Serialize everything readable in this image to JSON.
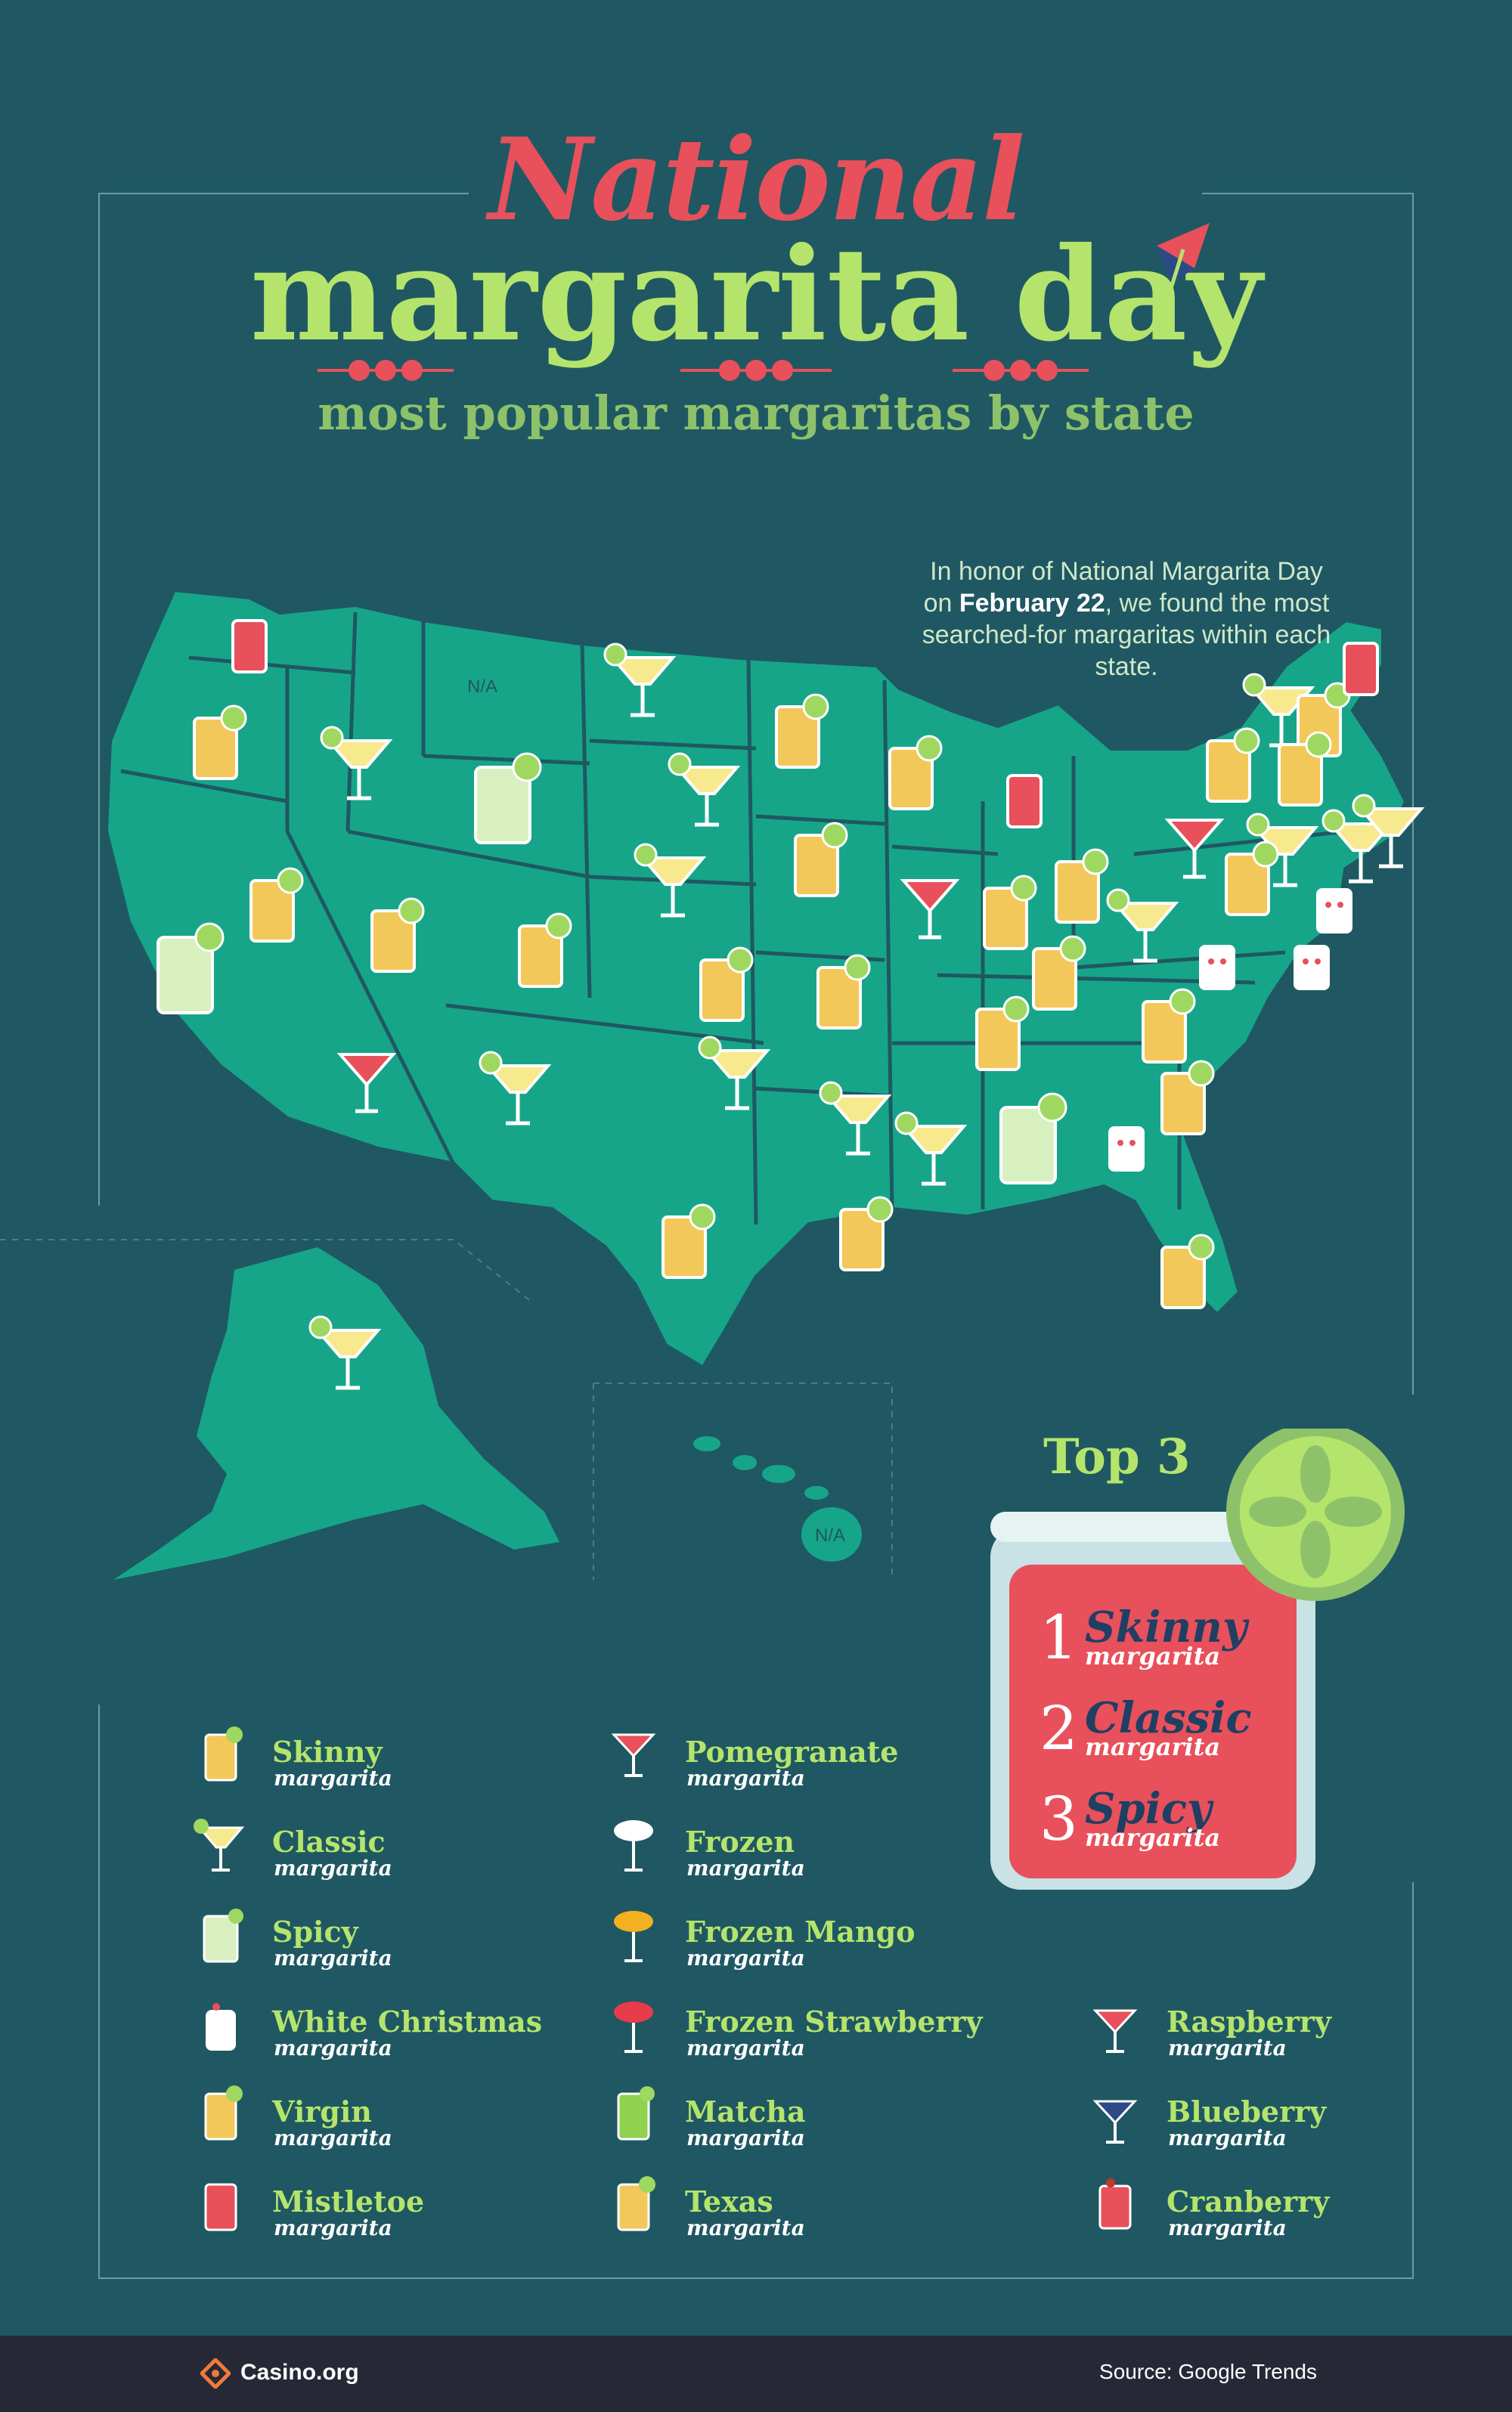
{
  "title": {
    "line1": "National",
    "line2": "margarita day",
    "subtitle": "most popular margaritas by state"
  },
  "intro": {
    "before": "In honor of National Margarita Day on ",
    "date": "February 22",
    "after": ", we found the most searched-for margaritas within each state."
  },
  "map": {
    "na_label": "N/A"
  },
  "legend": {
    "col1": [
      {
        "name": "Skinny",
        "sub": "margarita"
      },
      {
        "name": "Classic",
        "sub": "margarita"
      },
      {
        "name": "Spicy",
        "sub": "margarita"
      },
      {
        "name": "White Christmas",
        "sub": "margarita"
      },
      {
        "name": "Virgin",
        "sub": "margarita"
      },
      {
        "name": "Mistletoe",
        "sub": "margarita"
      }
    ],
    "col2": [
      {
        "name": "Pomegranate",
        "sub": "margarita"
      },
      {
        "name": "Frozen",
        "sub": "margarita"
      },
      {
        "name": "Frozen Mango",
        "sub": "margarita"
      },
      {
        "name": "Frozen Strawberry",
        "sub": "margarita"
      },
      {
        "name": "Matcha",
        "sub": "margarita"
      },
      {
        "name": "Texas",
        "sub": "margarita"
      }
    ],
    "col3": [
      {
        "name": "Raspberry",
        "sub": "margarita"
      },
      {
        "name": "Blueberry",
        "sub": "margarita"
      },
      {
        "name": "Cranberry",
        "sub": "margarita"
      }
    ]
  },
  "top3": {
    "title": "Top 3",
    "items": [
      {
        "rank": "1",
        "name": "Skinny",
        "sub": "margarita"
      },
      {
        "rank": "2",
        "name": "Classic",
        "sub": "margarita"
      },
      {
        "rank": "3",
        "name": "Spicy",
        "sub": "margarita"
      }
    ]
  },
  "footer": {
    "brand": "Casino.org",
    "source": "Source: Google Trends"
  },
  "colors": {
    "background": "#1f5862",
    "map": "#17a58a",
    "title_red": "#e8505b",
    "title_green": "#b5e46c",
    "footer": "#262836"
  }
}
